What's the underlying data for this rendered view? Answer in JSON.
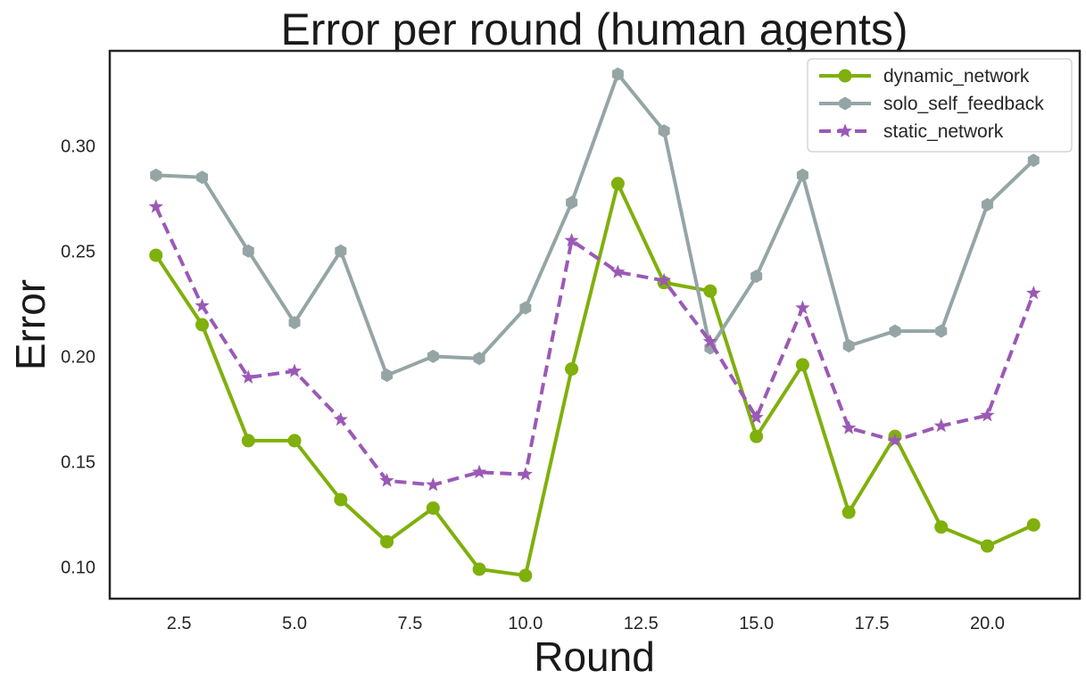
{
  "chart_data": {
    "type": "line",
    "title": "Error per round (human agents)",
    "xlabel": "Round",
    "ylabel": "Error",
    "xlim": [
      1.0,
      22.0
    ],
    "ylim": [
      0.085,
      0.345
    ],
    "xticks": [
      "2.5",
      "5.0",
      "7.5",
      "10.0",
      "12.5",
      "15.0",
      "17.5",
      "20.0"
    ],
    "yticks": [
      "0.10",
      "0.15",
      "0.20",
      "0.25",
      "0.30"
    ],
    "grid": false,
    "legend_position": "top-right",
    "x": [
      2,
      3,
      4,
      5,
      6,
      7,
      8,
      9,
      10,
      11,
      12,
      13,
      14,
      15,
      16,
      17,
      18,
      19,
      20,
      21
    ],
    "series": [
      {
        "name": "dynamic_network",
        "color": "#7fb00b",
        "marker": "circle",
        "line_style": "solid",
        "values": [
          0.248,
          0.215,
          0.16,
          0.16,
          0.132,
          0.112,
          0.128,
          0.099,
          0.096,
          0.194,
          0.282,
          0.235,
          0.231,
          0.162,
          0.196,
          0.126,
          0.162,
          0.119,
          0.11,
          0.12
        ]
      },
      {
        "name": "solo_self_feedback",
        "color": "#95a5a6",
        "marker": "hexagon",
        "line_style": "solid",
        "values": [
          0.286,
          0.285,
          0.25,
          0.216,
          0.25,
          0.191,
          0.2,
          0.199,
          0.223,
          0.273,
          0.334,
          0.307,
          0.204,
          0.238,
          0.286,
          0.205,
          0.212,
          0.212,
          0.272,
          0.293
        ]
      },
      {
        "name": "static_network",
        "color": "#9b59b6",
        "marker": "star",
        "line_style": "dashed",
        "values": [
          0.271,
          0.224,
          0.19,
          0.193,
          0.17,
          0.141,
          0.139,
          0.145,
          0.144,
          0.255,
          0.24,
          0.236,
          0.207,
          0.171,
          0.223,
          0.166,
          0.16,
          0.167,
          0.172,
          0.23
        ]
      }
    ]
  }
}
